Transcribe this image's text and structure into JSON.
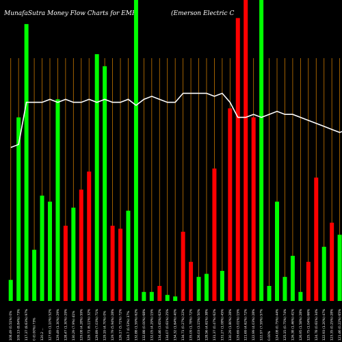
{
  "header": {
    "left": "MunafaSutra  Money Flow  Charts for EMR",
    "right": "(Emerson  Electric C"
  },
  "chart_data": {
    "type": "bar",
    "ylim": [
      0,
      100
    ],
    "grid": true,
    "colors": {
      "up": "#00ff00",
      "down": "#ff0000",
      "grid": "#c87800",
      "line": "#ffffff",
      "background": "#000000"
    },
    "categories": [
      "108.49 (0.51%) 0%",
      "109.13 (8.84%) 73%",
      "117.37 (8.63%) 97%",
      "0 (0.00%) 73%",
      "120.2 ...",
      "127.65 (1.10%) 52%",
      "129.49 (1.30%) 29%",
      "128.47 (1.30%) 29%",
      "130.29 (7.9%) 41%",
      "129.08 (4.28%) 59%",
      "129.71 (6.11%) 32%",
      "129.89 (7.03%) 71%",
      "129.19 (4.70%) 0%",
      "129.79 (5.94%) 28%",
      "126.17 (5.71%) 72%",
      "124.7 (0.53%) 37%",
      "132.88 (1.59%) 62%",
      "132.88 (0.00%) 68%",
      "132.05 (4.29%) 15%",
      "134.46 (3.65%) 62%",
      "134.07 (0.61%) 25%",
      "134.32 (1.64%) 40%",
      "134.71 (0.27%) 22%",
      "135.09 (1.78%) 72%",
      "126.03 (3.15%) 50%",
      "128.56 (4.61%) 38%",
      "131.37 (0.47%) 62%",
      "131.27 (1.08%) 45%",
      "130.29 (1.80%) 28%",
      "129.69 (3.01%) 15%",
      "121.69 (4.62%) 72%",
      "122.99 (4.03%) 28%",
      "122.97 (7.59%) 57%",
      "0.00%",
      "124.08 (0.75%) 44%",
      "125.15 (0.75%) 74%",
      "126.38 (1.46%) 41%",
      "126.95 (1.58%) 28%",
      "125.75 (1.04%) 66%",
      "124.78 (0.61%) 34%",
      "122.93 (1.20%) 47%",
      "123.35 (0.25%) 28%",
      "121.46 (0.22%) 65%",
      "121.44 (1.34%) 57%"
    ],
    "series": [
      {
        "values": [
          7,
          61,
          92,
          17,
          35,
          33,
          67,
          25,
          31,
          37,
          43,
          82,
          78,
          25,
          24,
          30,
          100,
          3,
          3,
          5,
          2,
          1.5,
          23,
          13,
          8,
          9,
          44,
          10,
          64,
          94,
          100,
          61,
          100,
          5,
          33,
          8,
          15,
          3,
          13,
          41,
          18,
          26,
          22,
          15
        ],
        "directions": [
          "up",
          "up",
          "up",
          "up",
          "up",
          "up",
          "up",
          "down",
          "up",
          "down",
          "down",
          "up",
          "up",
          "down",
          "down",
          "up",
          "up",
          "up",
          "up",
          "down",
          "up",
          "up",
          "down",
          "down",
          "up",
          "up",
          "down",
          "up",
          "down",
          "down",
          "down",
          "down",
          "up",
          "up",
          "up",
          "up",
          "up",
          "up",
          "down",
          "down",
          "up",
          "down",
          "up",
          "up"
        ]
      },
      {
        "values": [
          51,
          52,
          66,
          66,
          66,
          67,
          66,
          67,
          66,
          66,
          67,
          66,
          67,
          66,
          66,
          67,
          65,
          67,
          68,
          67,
          66,
          66,
          69,
          69,
          69,
          69,
          68,
          69,
          66,
          61,
          61,
          62,
          61,
          62,
          63,
          62,
          62,
          61,
          60,
          59,
          58,
          57,
          56,
          57
        ]
      }
    ]
  }
}
